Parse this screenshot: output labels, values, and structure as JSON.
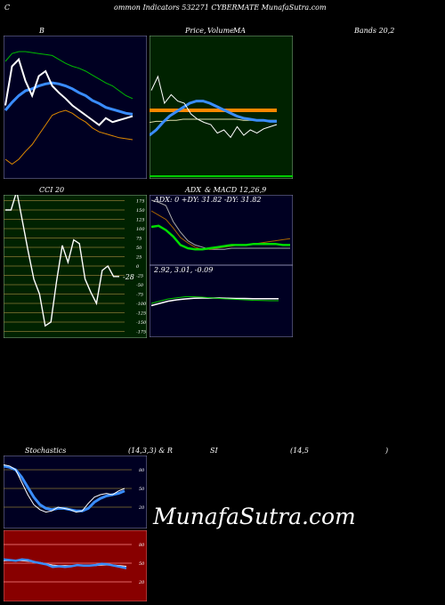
{
  "header": {
    "c": "C",
    "title": "ommon  Indicators 532271 CYBERMATE MunafaSutra.com"
  },
  "panels": {
    "bb_label": "B",
    "price_label": "Price,",
    "volume_label": "Volume",
    "ma_label": "MA",
    "bands_label": "Bands 20,2",
    "cci_label": "CCI 20",
    "adx_label": "ADX",
    "macd_label": "& MACD 12,26,9",
    "adx_values": "ADX: 0   +DY: 31.82  -DY: 31.82",
    "macd_values": "2.92,  3.01,  -0.09",
    "stoch_label": "Stochastics",
    "stoch_params": "(14,3,3) & R",
    "rsi_label": "SI",
    "rsi_params": "(14,5",
    "rsi_close": ")"
  },
  "watermark": "MunafaSutra.com",
  "colors": {
    "bb_bg": "#000022",
    "price_bg": "#002200",
    "cci_bg": "#002200",
    "adx_bg": "#000022",
    "stoch_bg": "#000022",
    "rsi_bg": "#880000",
    "blue": "#3a8dff",
    "green": "#00cc00",
    "orange": "#ff8800"
  },
  "chart_data": [
    {
      "type": "line",
      "name": "bollinger",
      "x": [
        1,
        2,
        3,
        4,
        5,
        6,
        7,
        8,
        9,
        10,
        11,
        12,
        13,
        14,
        15,
        16,
        17,
        18,
        19,
        20
      ],
      "series": [
        {
          "name": "upper",
          "values": [
            0.8,
            0.88,
            0.9,
            0.9,
            0.89,
            0.88,
            0.87,
            0.86,
            0.82,
            0.78,
            0.75,
            0.73,
            0.7,
            0.66,
            0.62,
            0.58,
            0.55,
            0.5,
            0.45,
            0.42
          ]
        },
        {
          "name": "middle",
          "values": [
            0.3,
            0.38,
            0.45,
            0.5,
            0.52,
            0.55,
            0.57,
            0.58,
            0.57,
            0.55,
            0.52,
            0.48,
            0.45,
            0.4,
            0.37,
            0.33,
            0.31,
            0.29,
            0.27,
            0.26
          ]
        },
        {
          "name": "lower",
          "values": [
            -0.2,
            -0.25,
            -0.2,
            -0.12,
            -0.05,
            0.05,
            0.15,
            0.25,
            0.28,
            0.3,
            0.27,
            0.22,
            0.18,
            0.12,
            0.08,
            0.06,
            0.04,
            0.02,
            0.01,
            0.0
          ]
        },
        {
          "name": "price",
          "values": [
            0.35,
            0.75,
            0.82,
            0.6,
            0.45,
            0.65,
            0.7,
            0.55,
            0.48,
            0.42,
            0.35,
            0.3,
            0.25,
            0.2,
            0.15,
            0.22,
            0.18,
            0.2,
            0.22,
            0.24
          ]
        }
      ]
    },
    {
      "type": "line",
      "name": "price_ma",
      "x": [
        1,
        2,
        3,
        4,
        5,
        6,
        7,
        8,
        9,
        10,
        11,
        12,
        13,
        14,
        15,
        16,
        17,
        18,
        19,
        20
      ],
      "series": [
        {
          "name": "price",
          "values": [
            0.82,
            0.95,
            0.7,
            0.78,
            0.72,
            0.7,
            0.6,
            0.55,
            0.52,
            0.5,
            0.42,
            0.45,
            0.38,
            0.48,
            0.4,
            0.45,
            0.42,
            0.46,
            0.48,
            0.5
          ]
        },
        {
          "name": "ma1",
          "values": [
            0.4,
            0.45,
            0.52,
            0.58,
            0.62,
            0.66,
            0.7,
            0.72,
            0.72,
            0.7,
            0.67,
            0.64,
            0.61,
            0.58,
            0.56,
            0.55,
            0.54,
            0.54,
            0.53,
            0.53
          ]
        },
        {
          "name": "ma2",
          "values": [
            0.52,
            0.53,
            0.53,
            0.54,
            0.54,
            0.55,
            0.55,
            0.55,
            0.55,
            0.55,
            0.55,
            0.55,
            0.55,
            0.55,
            0.54,
            0.54,
            0.54,
            0.54,
            0.54,
            0.54
          ]
        }
      ]
    },
    {
      "type": "line",
      "name": "cci",
      "yticks": [
        175,
        150,
        125,
        100,
        75,
        50,
        25,
        0,
        -25,
        -50,
        -75,
        -100,
        -125,
        -150,
        -175
      ],
      "ylim": [
        -175,
        175
      ],
      "values": [
        150,
        150,
        200,
        120,
        40,
        -35,
        -75,
        -160,
        -150,
        -40,
        55,
        10,
        70,
        60,
        -35,
        -70,
        -100,
        -12,
        0,
        -28,
        -28
      ],
      "last_label": "-28"
    },
    {
      "type": "line",
      "name": "adx",
      "series": [
        {
          "name": "adx",
          "values": [
            0.35,
            0.36,
            0.32,
            0.26,
            0.18,
            0.15,
            0.14,
            0.14,
            0.15,
            0.16,
            0.17,
            0.18,
            0.18,
            0.18,
            0.19,
            0.19,
            0.19,
            0.19,
            0.18,
            0.18
          ]
        },
        {
          "name": "pdi",
          "values": [
            0.5,
            0.46,
            0.42,
            0.34,
            0.25,
            0.2,
            0.16,
            0.14,
            0.14,
            0.15,
            0.16,
            0.17,
            0.18,
            0.18,
            0.19,
            0.2,
            0.21,
            0.22,
            0.23,
            0.24
          ]
        },
        {
          "name": "ndi",
          "values": [
            0.6,
            0.58,
            0.55,
            0.4,
            0.3,
            0.22,
            0.18,
            0.16,
            0.14,
            0.14,
            0.14,
            0.15,
            0.15,
            0.15,
            0.15,
            0.15,
            0.15,
            0.15,
            0.15,
            0.15
          ]
        }
      ]
    },
    {
      "type": "line",
      "name": "macd",
      "series": [
        {
          "name": "macd",
          "values": [
            2.8,
            2.9,
            3.0,
            3.05,
            3.1,
            3.1,
            3.08,
            3.05,
            3.02,
            3.0,
            2.98,
            2.96,
            2.94,
            2.93,
            2.92,
            2.92
          ]
        },
        {
          "name": "signal",
          "values": [
            2.7,
            2.8,
            2.9,
            2.96,
            3.0,
            3.03,
            3.04,
            3.04,
            3.04,
            3.03,
            3.02,
            3.02,
            3.01,
            3.01,
            3.01,
            3.01
          ]
        }
      ]
    },
    {
      "type": "line",
      "name": "stochastics",
      "yticks": [
        80,
        50,
        20
      ],
      "ylim": [
        0,
        100
      ],
      "series": [
        {
          "name": "k",
          "values": [
            88,
            86,
            80,
            60,
            40,
            24,
            16,
            12,
            14,
            20,
            18,
            16,
            12,
            14,
            26,
            36,
            40,
            42,
            40,
            46,
            50
          ]
        },
        {
          "name": "d",
          "values": [
            86,
            84,
            80,
            68,
            52,
            36,
            24,
            18,
            16,
            18,
            18,
            16,
            14,
            14,
            18,
            28,
            34,
            38,
            40,
            42,
            46
          ]
        }
      ]
    },
    {
      "type": "line",
      "name": "rsi",
      "yticks": [
        80,
        50,
        20
      ],
      "ylim": [
        0,
        100
      ],
      "series": [
        {
          "name": "rsi",
          "values": [
            56,
            55,
            54,
            56,
            55,
            52,
            50,
            48,
            44,
            45,
            44,
            45,
            47,
            46,
            46,
            47,
            49,
            48,
            46,
            44,
            42
          ]
        },
        {
          "name": "avg",
          "values": [
            54,
            54,
            54,
            54,
            53,
            52,
            51,
            49,
            47,
            46,
            46,
            46,
            46,
            46,
            46,
            46,
            47,
            47,
            47,
            46,
            45
          ]
        }
      ]
    }
  ]
}
